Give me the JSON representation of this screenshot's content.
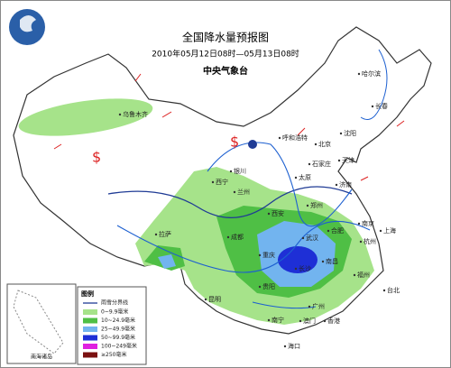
{
  "header": {
    "title": "全国降水量预报图",
    "subtitle": "2010年05月12日08时—05月13日08时",
    "agency": "中央气象台"
  },
  "cities": [
    "乌鲁木齐",
    "哈尔滨",
    "长春",
    "沈阳",
    "呼和浩特",
    "北京",
    "天津",
    "石家庄",
    "太原",
    "济南",
    "银川",
    "西宁",
    "兰州",
    "西安",
    "郑州",
    "合肥",
    "南京",
    "上海",
    "杭州",
    "武汉",
    "成都",
    "重庆",
    "拉萨",
    "长沙",
    "南昌",
    "贵阳",
    "福州",
    "昆明",
    "广州",
    "南宁",
    "香港",
    "澳门",
    "海口",
    "台北"
  ],
  "legend": {
    "title": "图例",
    "line": "雨雪分界线",
    "items": [
      "0~9.9毫米",
      "10~24.9毫米",
      "25~49.9毫米",
      "50~99.9毫米",
      "100~249毫米",
      "≥250毫米"
    ]
  },
  "inset": {
    "label": "南海诸岛"
  }
}
